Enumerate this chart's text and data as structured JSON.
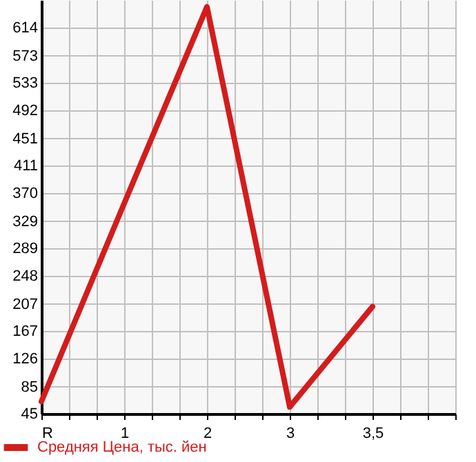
{
  "chart_data": {
    "type": "line",
    "categories": [
      "R",
      "1",
      "2",
      "3",
      "3,5"
    ],
    "series": [
      {
        "name": "Средняя Цена, тыс. йен",
        "color": "#d41c1c",
        "values": [
          63,
          355,
          645,
          55,
          203
        ]
      }
    ],
    "ylim": [
      45,
      655
    ],
    "yticks": [
      45,
      85,
      126,
      167,
      207,
      248,
      289,
      329,
      370,
      411,
      451,
      492,
      533,
      573,
      614
    ],
    "grid": true,
    "legend": "bottom left",
    "marker": "none",
    "line_style": "solid"
  }
}
